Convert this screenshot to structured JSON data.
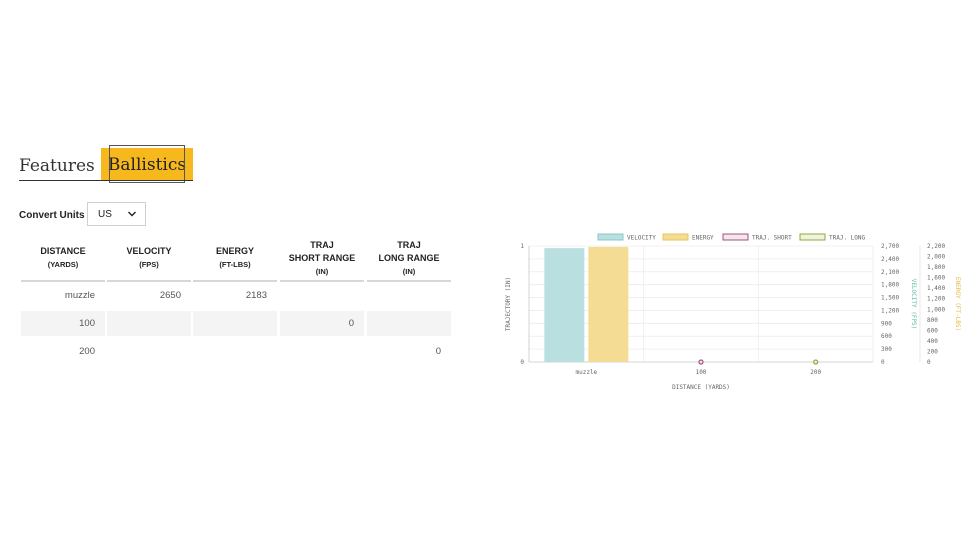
{
  "tabs": {
    "features_label": "Features",
    "ballistics_label": "Ballistics"
  },
  "convert": {
    "label": "Convert Units",
    "value": "US"
  },
  "table": {
    "headers": [
      {
        "line1": "",
        "line2": "DISTANCE",
        "sub": "(YARDS)"
      },
      {
        "line1": "",
        "line2": "VELOCITY",
        "sub": "(FPS)"
      },
      {
        "line1": "",
        "line2": "ENERGY",
        "sub": "(FT-LBS)"
      },
      {
        "line1": "TRAJ",
        "line2": "SHORT RANGE",
        "sub": "(IN)"
      },
      {
        "line1": "TRAJ",
        "line2": "LONG RANGE",
        "sub": "(IN)"
      }
    ],
    "rows": [
      [
        "muzzle",
        "2650",
        "2183",
        "",
        ""
      ],
      [
        "100",
        "",
        "",
        "0",
        ""
      ],
      [
        "200",
        "",
        "",
        "",
        "0"
      ]
    ]
  },
  "chart_data": {
    "type": "bar",
    "categories": [
      "muzzle",
      "100",
      "200"
    ],
    "xlabel": "DISTANCE (YARDS)",
    "legend": [
      {
        "label": "VELOCITY",
        "fill": "#b9dfe1",
        "stroke": "#8cc6ca"
      },
      {
        "label": "ENERGY",
        "fill": "#f4dc94",
        "stroke": "#e8c35c"
      },
      {
        "label": "TRAJ. SHORT",
        "fill": "#f3e6ee",
        "stroke": "#a3507e"
      },
      {
        "label": "TRAJ. LONG",
        "fill": "#eef2df",
        "stroke": "#8faa3a"
      }
    ],
    "series": [
      {
        "name": "VELOCITY",
        "axis": "velocity",
        "values": [
          2650,
          null,
          null
        ]
      },
      {
        "name": "ENERGY",
        "axis": "energy",
        "values": [
          2183,
          null,
          null
        ]
      },
      {
        "name": "TRAJ. SHORT",
        "axis": "trajectory",
        "values": [
          null,
          0,
          null
        ]
      },
      {
        "name": "TRAJ. LONG",
        "axis": "trajectory",
        "values": [
          null,
          null,
          0
        ]
      }
    ],
    "axes": {
      "trajectory": {
        "label": "TRAJECTORY (IN)",
        "position": "left",
        "range": [
          0,
          1
        ],
        "ticks": [
          "0",
          "1"
        ]
      },
      "velocity": {
        "label": "VELOCITY (FPS)",
        "position": "right",
        "color": "#5fb8a6",
        "range": [
          0,
          2700
        ],
        "ticks": [
          "0",
          "300",
          "600",
          "900",
          "1,200",
          "1,500",
          "1,800",
          "2,100",
          "2,400",
          "2,700"
        ]
      },
      "energy": {
        "label": "ENERGY (FT-LBS)",
        "position": "right",
        "color": "#e6b94a",
        "range": [
          0,
          2200
        ],
        "ticks": [
          "0",
          "200",
          "400",
          "600",
          "800",
          "1,000",
          "1,200",
          "1,400",
          "1,600",
          "1,800",
          "2,000",
          "2,200"
        ]
      }
    },
    "grid": true,
    "legend_placement": "top"
  }
}
